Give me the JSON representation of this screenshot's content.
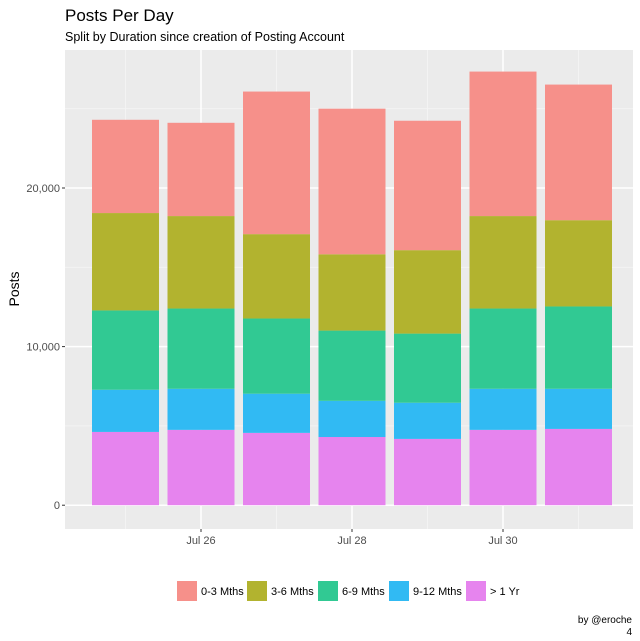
{
  "chart_data": {
    "type": "bar",
    "stacked": true,
    "title": "Posts Per Day",
    "subtitle": "Split by Duration since creation of Posting Account",
    "xlabel": "",
    "ylabel": "Posts",
    "categories": [
      "Jul 25",
      "Jul 26",
      "Jul 27",
      "Jul 28",
      "Jul 29",
      "Jul 30",
      "Jul 31"
    ],
    "x_ticks": [
      {
        "label": "Jul 26",
        "index": 1
      },
      {
        "label": "Jul 28",
        "index": 3
      },
      {
        "label": "Jul 30",
        "index": 5
      }
    ],
    "y_ticks": [
      {
        "label": "0",
        "value": 0
      },
      {
        "label": "10,000",
        "value": 10000
      },
      {
        "label": "20,000",
        "value": 20000
      }
    ],
    "ylim": [
      -1500,
      28700
    ],
    "grid": true,
    "legend_position": "bottom",
    "series": [
      {
        "name": "> 1 Yr",
        "color": "#E684EE",
        "values": [
          4620,
          4750,
          4560,
          4300,
          4180,
          4750,
          4810
        ]
      },
      {
        "name": "9-12 Mths",
        "color": "#31BAF3",
        "values": [
          2660,
          2590,
          2470,
          2280,
          2280,
          2590,
          2530
        ]
      },
      {
        "name": "6-9 Mths",
        "color": "#31C993",
        "values": [
          5000,
          5060,
          4740,
          4430,
          4360,
          5060,
          5190
        ]
      },
      {
        "name": "3-6 Mths",
        "color": "#B2B32F",
        "values": [
          6140,
          5830,
          5320,
          4810,
          5260,
          5830,
          5440
        ]
      },
      {
        "name": "0-3 Mths",
        "color": "#F6908A",
        "values": [
          5880,
          5880,
          8990,
          9180,
          8160,
          9110,
          8550
        ]
      }
    ],
    "legend": [
      {
        "name": "0-3 Mths",
        "color": "#F6908A"
      },
      {
        "name": "3-6 Mths",
        "color": "#B2B32F"
      },
      {
        "name": "6-9 Mths",
        "color": "#31C993"
      },
      {
        "name": "9-12 Mths",
        "color": "#31BAF3"
      },
      {
        "name": "> 1 Yr",
        "color": "#E684EE"
      }
    ],
    "caption": [
      "by @eroche",
      "4"
    ]
  }
}
